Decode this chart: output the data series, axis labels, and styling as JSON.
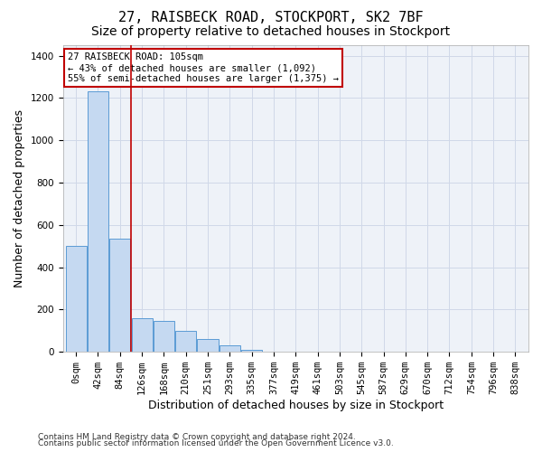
{
  "title1": "27, RAISBECK ROAD, STOCKPORT, SK2 7BF",
  "title2": "Size of property relative to detached houses in Stockport",
  "xlabel": "Distribution of detached houses by size in Stockport",
  "ylabel": "Number of detached properties",
  "bar_labels": [
    "0sqm",
    "42sqm",
    "84sqm",
    "126sqm",
    "168sqm",
    "210sqm",
    "251sqm",
    "293sqm",
    "335sqm",
    "377sqm",
    "419sqm",
    "461sqm",
    "503sqm",
    "545sqm",
    "587sqm",
    "629sqm",
    "670sqm",
    "712sqm",
    "754sqm",
    "796sqm",
    "838sqm"
  ],
  "bar_heights": [
    500,
    1230,
    535,
    160,
    145,
    100,
    60,
    30,
    10,
    0,
    0,
    0,
    0,
    0,
    0,
    0,
    0,
    0,
    0,
    0,
    0
  ],
  "bar_color": "#c5d9f1",
  "bar_edge_color": "#5b9bd5",
  "grid_color": "#d0d8e8",
  "vline_x": 2.5,
  "vline_color": "#c00000",
  "annotation_text": "27 RAISBECK ROAD: 105sqm\n← 43% of detached houses are smaller (1,092)\n55% of semi-detached houses are larger (1,375) →",
  "annotation_box_color": "#ffffff",
  "annotation_border_color": "#c00000",
  "ylim": [
    0,
    1450
  ],
  "yticks": [
    0,
    200,
    400,
    600,
    800,
    1000,
    1200,
    1400
  ],
  "footnote1": "Contains HM Land Registry data © Crown copyright and database right 2024.",
  "footnote2": "Contains public sector information licensed under the Open Government Licence v3.0.",
  "title1_fontsize": 11,
  "title2_fontsize": 10,
  "axis_fontsize": 9,
  "tick_fontsize": 7.5
}
